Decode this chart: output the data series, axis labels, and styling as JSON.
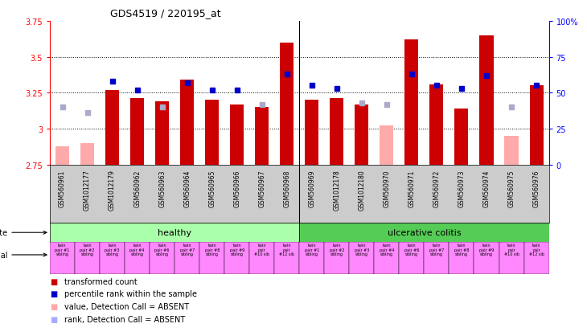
{
  "title": "GDS4519 / 220195_at",
  "samples": [
    "GSM560961",
    "GSM1012177",
    "GSM1012179",
    "GSM560962",
    "GSM560963",
    "GSM560964",
    "GSM560965",
    "GSM560966",
    "GSM560967",
    "GSM560968",
    "GSM560969",
    "GSM1012178",
    "GSM1012180",
    "GSM560970",
    "GSM560971",
    "GSM560972",
    "GSM560973",
    "GSM560974",
    "GSM560975",
    "GSM560976"
  ],
  "red_values": [
    null,
    null,
    3.27,
    3.21,
    3.19,
    3.34,
    3.2,
    3.17,
    3.15,
    3.6,
    3.2,
    3.21,
    3.17,
    null,
    3.62,
    3.31,
    3.14,
    3.65,
    null,
    3.3
  ],
  "pink_values": [
    2.88,
    2.9,
    null,
    null,
    null,
    null,
    null,
    null,
    null,
    null,
    null,
    null,
    null,
    3.02,
    null,
    null,
    null,
    null,
    2.95,
    null
  ],
  "blue_pct": [
    null,
    null,
    58,
    52,
    null,
    57,
    52,
    52,
    null,
    63,
    55,
    53,
    null,
    null,
    63,
    55,
    53,
    62,
    null,
    55
  ],
  "lavender_pct": [
    40,
    36,
    null,
    null,
    40,
    null,
    null,
    null,
    42,
    null,
    null,
    null,
    43,
    42,
    null,
    null,
    null,
    null,
    40,
    null
  ],
  "ylim_left": [
    2.75,
    3.75
  ],
  "ylim_right": [
    0,
    100
  ],
  "yticks_left": [
    2.75,
    3.0,
    3.25,
    3.5,
    3.75
  ],
  "ytick_labels_left": [
    "2.75",
    "3",
    "3.25",
    "3.5",
    "3.75"
  ],
  "yticks_right": [
    0,
    25,
    50,
    75,
    100
  ],
  "ytick_labels_right": [
    "0",
    "25",
    "50",
    "75",
    "100%"
  ],
  "healthy_count": 10,
  "individual_labels_healthy": [
    "twin\npair #1\nsibling",
    "twin\npair #2\nsibling",
    "twin\npair #3\nsibling",
    "twin\npair #4\nsibling",
    "twin\npair #6\nsibling",
    "twin\npair #7\nsibling",
    "twin\npair #8\nsibling",
    "twin\npair #9\nsibling",
    "twin\npair\n#10 sib",
    "twin\npair\n#12 sib"
  ],
  "individual_labels_uc": [
    "twin\npair #1\nsibling",
    "twin\npair #2\nsibling",
    "twin\npair #3\nsibling",
    "twin\npair #4\nsibling",
    "twin\npair #6\nsibling",
    "twin\npair #7\nsibling",
    "twin\npair #8\nsibling",
    "twin\npair #9\nsibling",
    "twin\npair\n#10 sib",
    "twin\npair\n#12 sib"
  ],
  "legend_items": [
    {
      "color": "#cc0000",
      "label": "transformed count"
    },
    {
      "color": "#0000cc",
      "label": "percentile rank within the sample"
    },
    {
      "color": "#ffaaaa",
      "label": "value, Detection Call = ABSENT"
    },
    {
      "color": "#aaaaff",
      "label": "rank, Detection Call = ABSENT"
    }
  ],
  "bar_width": 0.55,
  "bar_color_red": "#cc0000",
  "bar_color_pink": "#ffaaaa",
  "dot_color_blue": "#0000cc",
  "dot_color_lavender": "#aaaacc",
  "healthy_bg": "#aaffaa",
  "uc_bg": "#55cc55",
  "individual_bg": "#ff88ff",
  "sample_bg": "#cccccc",
  "dotted_lines": [
    3.0,
    3.25,
    3.5
  ]
}
